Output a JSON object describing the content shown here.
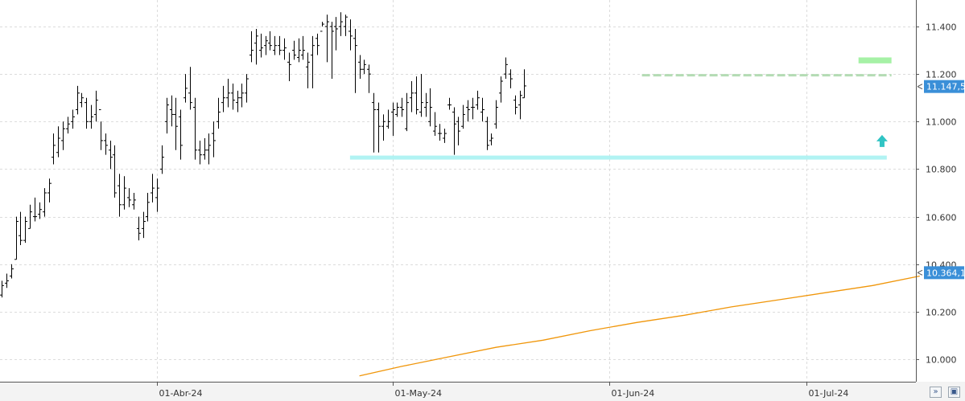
{
  "colors": {
    "bars": "#000000",
    "grid": "#dcdcdc",
    "sma": "#f0960a",
    "resistance_zone": "#9cf09c",
    "resistance_line": "#b4dcb4",
    "support_zone": "#a8f2f2",
    "arrow": "#30c4c4",
    "badge": "#3a8fd8"
  },
  "icons": [
    "scroll-end-icon",
    "save-icon"
  ],
  "chart_data": {
    "type": "ohlc",
    "title": "",
    "xlabel": "",
    "ylabel": "",
    "ylim": [
      9.93,
      11.51
    ],
    "y_ticks": [
      10.0,
      10.2,
      10.4,
      10.6,
      10.8,
      11.0,
      11.2,
      11.4
    ],
    "y_tick_labels": [
      "10.000",
      "10.200",
      "10.400",
      "10.600",
      "10.800",
      "11.000",
      "11.200",
      "11.400"
    ],
    "x_tick_labels": [
      "01-Abr-24",
      "01-May-24",
      "01-Jun-24",
      "01-Jul-24"
    ],
    "x_tick_index": [
      33,
      83,
      129,
      171
    ],
    "grid": true,
    "bars": [
      [
        10.27,
        10.33,
        10.26,
        10.31
      ],
      [
        10.32,
        10.36,
        10.3,
        10.33
      ],
      [
        10.35,
        10.4,
        10.34,
        10.38
      ],
      [
        10.42,
        10.6,
        10.42,
        10.58
      ],
      [
        10.52,
        10.62,
        10.48,
        10.5
      ],
      [
        10.5,
        10.6,
        10.49,
        10.58
      ],
      [
        10.55,
        10.65,
        10.55,
        10.62
      ],
      [
        10.6,
        10.68,
        10.58,
        10.6
      ],
      [
        10.61,
        10.66,
        10.59,
        10.63
      ],
      [
        10.62,
        10.72,
        10.6,
        10.7
      ],
      [
        10.7,
        10.76,
        10.66,
        10.74
      ],
      [
        10.85,
        10.95,
        10.82,
        10.9
      ],
      [
        10.87,
        10.98,
        10.85,
        10.93
      ],
      [
        10.92,
        11.0,
        10.88,
        10.97
      ],
      [
        10.97,
        11.02,
        10.95,
        10.99
      ],
      [
        11.0,
        11.05,
        10.97,
        11.02
      ],
      [
        11.05,
        11.15,
        11.03,
        11.12
      ],
      [
        11.08,
        11.12,
        11.06,
        11.1
      ],
      [
        11.08,
        11.1,
        10.97,
        11.0
      ],
      [
        11.0,
        11.07,
        10.97,
        11.02
      ],
      [
        11.03,
        11.13,
        11.0,
        11.09
      ],
      [
        11.05,
        11.0,
        10.88,
        10.92
      ],
      [
        10.92,
        10.95,
        10.86,
        10.9
      ],
      [
        10.88,
        10.92,
        10.8,
        10.85
      ],
      [
        10.86,
        10.9,
        10.68,
        10.7
      ],
      [
        10.73,
        10.78,
        10.6,
        10.65
      ],
      [
        10.65,
        10.77,
        10.63,
        10.72
      ],
      [
        10.68,
        10.72,
        10.64,
        10.67
      ],
      [
        10.65,
        10.7,
        10.63,
        10.67
      ],
      [
        10.55,
        10.6,
        10.5,
        10.53
      ],
      [
        10.55,
        10.62,
        10.51,
        10.58
      ],
      [
        10.6,
        10.7,
        10.58,
        10.66
      ],
      [
        10.7,
        10.78,
        10.66,
        10.72
      ],
      [
        10.68,
        10.76,
        10.62,
        10.72
      ],
      [
        10.8,
        10.9,
        10.78,
        10.85
      ],
      [
        11.0,
        11.1,
        10.95,
        11.07
      ],
      [
        11.05,
        11.11,
        10.98,
        11.03
      ],
      [
        11.03,
        11.1,
        10.88,
        10.98
      ],
      [
        11.02,
        11.05,
        10.84,
        10.9
      ],
      [
        11.1,
        11.2,
        11.08,
        11.14
      ],
      [
        11.12,
        11.23,
        11.05,
        11.08
      ],
      [
        11.06,
        11.1,
        10.84,
        10.88
      ],
      [
        10.88,
        10.92,
        10.82,
        10.86
      ],
      [
        10.86,
        10.93,
        10.84,
        10.88
      ],
      [
        10.88,
        10.95,
        10.82,
        10.9
      ],
      [
        10.95,
        11.0,
        10.85,
        10.92
      ],
      [
        11.0,
        11.1,
        10.97,
        11.04
      ],
      [
        11.08,
        11.15,
        11.04,
        11.1
      ],
      [
        11.1,
        11.18,
        11.06,
        11.12
      ],
      [
        11.12,
        11.16,
        11.05,
        11.09
      ],
      [
        11.08,
        11.13,
        11.04,
        11.1
      ],
      [
        11.1,
        11.16,
        11.06,
        11.12
      ],
      [
        11.12,
        11.2,
        11.08,
        11.18
      ],
      [
        11.28,
        11.38,
        11.25,
        11.3
      ],
      [
        11.33,
        11.39,
        11.24,
        11.36
      ],
      [
        11.3,
        11.37,
        11.27,
        11.31
      ],
      [
        11.32,
        11.36,
        11.28,
        11.34
      ],
      [
        11.33,
        11.38,
        11.3,
        11.32
      ],
      [
        11.3,
        11.36,
        11.28,
        11.32
      ],
      [
        11.32,
        11.36,
        11.28,
        11.3
      ],
      [
        11.3,
        11.35,
        11.26,
        11.31
      ],
      [
        11.25,
        11.29,
        11.17,
        11.24
      ],
      [
        11.3,
        11.34,
        11.26,
        11.28
      ],
      [
        11.27,
        11.35,
        11.25,
        11.3
      ],
      [
        11.28,
        11.36,
        11.26,
        11.3
      ],
      [
        11.23,
        11.29,
        11.14,
        11.25
      ],
      [
        11.28,
        11.36,
        11.14,
        11.32
      ],
      [
        11.35,
        11.37,
        11.28,
        11.32
      ],
      [
        11.38,
        11.42,
        11.4,
        11.41
      ],
      [
        11.4,
        11.45,
        11.25,
        11.42
      ],
      [
        11.4,
        11.42,
        11.18,
        11.38
      ],
      [
        11.4,
        11.44,
        11.3,
        11.39
      ],
      [
        11.4,
        11.46,
        11.36,
        11.42
      ],
      [
        11.4,
        11.45,
        11.36,
        11.44
      ],
      [
        11.38,
        11.43,
        11.3,
        11.36
      ],
      [
        11.35,
        11.39,
        11.12,
        11.32
      ],
      [
        11.25,
        11.28,
        11.18,
        11.22
      ],
      [
        11.22,
        11.26,
        11.2,
        11.24
      ],
      [
        11.22,
        11.24,
        11.12,
        11.2
      ],
      [
        11.08,
        11.12,
        10.87,
        11.05
      ],
      [
        11.05,
        11.08,
        10.87,
        10.98
      ],
      [
        10.98,
        11.03,
        10.92,
        11.0
      ],
      [
        10.98,
        11.05,
        10.97,
        11.0
      ],
      [
        11.04,
        11.08,
        10.94,
        11.05
      ],
      [
        11.03,
        11.08,
        11.02,
        11.06
      ],
      [
        11.06,
        11.1,
        11.02,
        11.05
      ],
      [
        10.97,
        11.12,
        10.96,
        11.08
      ],
      [
        11.1,
        11.17,
        11.04,
        11.12
      ],
      [
        11.12,
        11.19,
        11.03,
        11.05
      ],
      [
        11.04,
        11.2,
        11.02,
        11.08
      ],
      [
        11.06,
        11.12,
        11.02,
        11.08
      ],
      [
        11.0,
        11.14,
        10.98,
        11.06
      ],
      [
        10.96,
        11.04,
        10.94,
        10.98
      ],
      [
        10.95,
        10.99,
        10.92,
        10.95
      ],
      [
        10.93,
        10.97,
        10.91,
        10.95
      ],
      [
        11.07,
        11.1,
        11.05,
        11.07
      ],
      [
        11.04,
        11.06,
        10.86,
        10.99
      ],
      [
        11.0,
        11.02,
        10.9,
        10.96
      ],
      [
        10.98,
        11.07,
        10.97,
        11.03
      ],
      [
        11.06,
        11.09,
        11.0,
        11.05
      ],
      [
        11.06,
        11.1,
        11.01,
        11.06
      ],
      [
        11.07,
        11.13,
        11.05,
        11.1
      ],
      [
        11.04,
        11.1,
        11.0,
        11.05
      ],
      [
        11.0,
        11.02,
        10.88,
        10.9
      ],
      [
        10.92,
        10.95,
        10.9,
        10.93
      ],
      [
        10.99,
        11.09,
        10.97,
        11.06
      ],
      [
        11.12,
        11.19,
        11.08,
        11.17
      ],
      [
        11.2,
        11.27,
        11.18,
        11.24
      ],
      [
        11.2,
        11.22,
        11.14,
        11.18
      ],
      [
        11.09,
        11.11,
        11.03,
        11.06
      ],
      [
        11.07,
        11.13,
        11.01,
        11.11
      ],
      [
        11.1,
        11.22,
        11.1,
        11.15
      ]
    ],
    "x_index_start": 0,
    "sma": {
      "x": [
        76,
        85,
        95,
        105,
        115,
        125,
        135,
        145,
        155,
        165,
        175,
        185,
        195
      ],
      "y": [
        9.93,
        9.97,
        10.01,
        10.05,
        10.08,
        10.12,
        10.155,
        10.185,
        10.22,
        10.25,
        10.28,
        10.31,
        10.35
      ]
    },
    "levels": [
      {
        "type": "zone",
        "from": 182,
        "to": 189,
        "y0": 11.245,
        "y1": 11.27,
        "color": "#9cf09c"
      },
      {
        "type": "dashed",
        "from": 136,
        "to": 189,
        "y": 11.195,
        "color": "#b4dcb4"
      },
      {
        "type": "zone",
        "from": 74,
        "to": 188,
        "y0": 10.84,
        "y1": 10.857,
        "color": "#a8f2f2"
      }
    ],
    "arrow": {
      "index": 187,
      "y": 10.91
    },
    "price_badges": [
      {
        "value": 11.1475,
        "label": "11.147,5",
        "color": "#3a8fd8"
      },
      {
        "value": 10.3641,
        "label": "10.364,1",
        "color": "#3a8fd8"
      }
    ]
  }
}
